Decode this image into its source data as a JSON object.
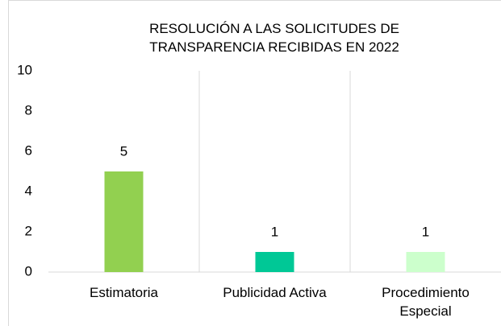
{
  "chart_data": {
    "type": "bar",
    "title": "RESOLUCIÓN A LAS SOLICITUDES DE TRANSPARENCIA RECIBIDAS EN 2022",
    "categories": [
      "Estimatoria",
      "Publicidad Activa",
      "Procedimiento Especial"
    ],
    "values": [
      5,
      1,
      1
    ],
    "colors": [
      "#92d050",
      "#00c896",
      "#ccffcc"
    ],
    "ylim": [
      0,
      10
    ],
    "yticks": [
      0,
      2,
      4,
      6,
      8,
      10
    ]
  }
}
